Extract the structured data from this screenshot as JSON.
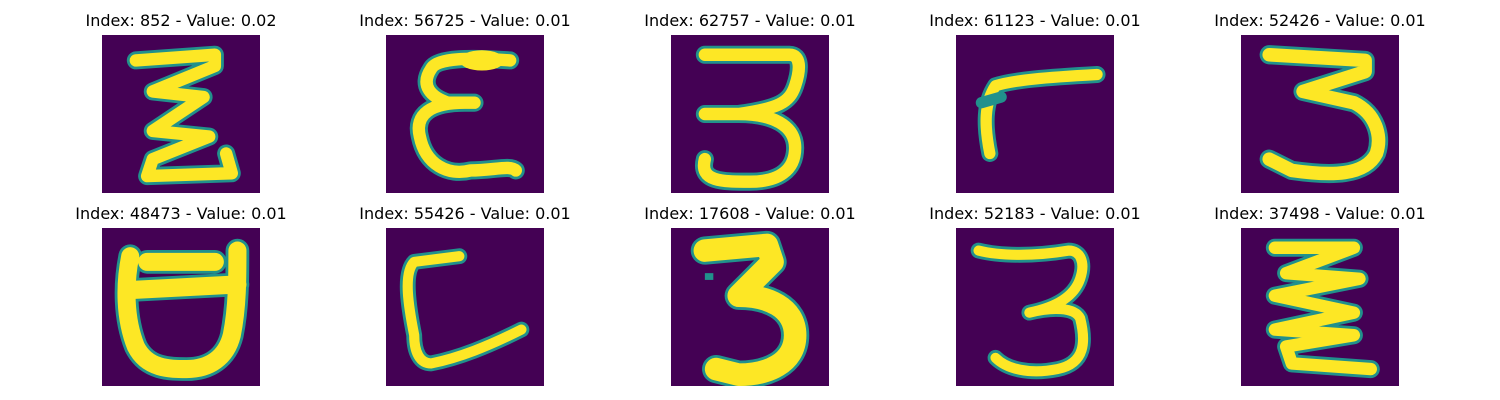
{
  "colors": {
    "background": "#440154",
    "stroke_core": "#fde725",
    "stroke_edge": "#21918c"
  },
  "panels": [
    {
      "title": "Index: 852 - Value: 0.02",
      "depicts": "handwritten Z-like glyph"
    },
    {
      "title": "Index: 56725 - Value: 0.01",
      "depicts": "handwritten epsilon-like glyph"
    },
    {
      "title": "Index: 62757 - Value: 0.01",
      "depicts": "handwritten 3-like glyph"
    },
    {
      "title": "Index: 61123 - Value: 0.01",
      "depicts": "handwritten r-like glyph"
    },
    {
      "title": "Index: 52426 - Value: 0.01",
      "depicts": "handwritten 3-like glyph"
    },
    {
      "title": "Index: 48473 - Value: 0.01",
      "depicts": "handwritten cup-like glyph"
    },
    {
      "title": "Index: 55426 - Value: 0.01",
      "depicts": "handwritten L-like glyph"
    },
    {
      "title": "Index: 17608 - Value: 0.01",
      "depicts": "handwritten 3-like glyph"
    },
    {
      "title": "Index: 52183 - Value: 0.01",
      "depicts": "handwritten 3-like glyph"
    },
    {
      "title": "Index: 37498 - Value: 0.01",
      "depicts": "handwritten zigzag glyph"
    }
  ]
}
